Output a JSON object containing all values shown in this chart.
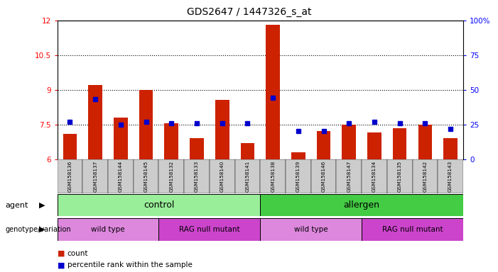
{
  "title": "GDS2647 / 1447326_s_at",
  "samples": [
    "GSM158136",
    "GSM158137",
    "GSM158144",
    "GSM158145",
    "GSM158132",
    "GSM158133",
    "GSM158140",
    "GSM158141",
    "GSM158138",
    "GSM158139",
    "GSM158146",
    "GSM158147",
    "GSM158134",
    "GSM158135",
    "GSM158142",
    "GSM158143"
  ],
  "counts": [
    7.1,
    9.2,
    7.8,
    9.0,
    7.55,
    6.9,
    8.55,
    6.7,
    11.8,
    6.3,
    7.2,
    7.5,
    7.15,
    7.35,
    7.5,
    6.9
  ],
  "percentiles": [
    27,
    43,
    25,
    27,
    26,
    26,
    26,
    26,
    44,
    20,
    20,
    26,
    27,
    26,
    26,
    22
  ],
  "ylim_left": [
    6,
    12
  ],
  "ylim_right": [
    0,
    100
  ],
  "yticks_left": [
    6,
    7.5,
    9,
    10.5,
    12
  ],
  "yticks_right": [
    0,
    25,
    50,
    75,
    100
  ],
  "bar_color": "#cc2200",
  "dot_color": "#0000cc",
  "agent_control_label": "control",
  "agent_allergen_label": "allergen",
  "agent_control_color": "#99ee99",
  "agent_allergen_color": "#44cc44",
  "wt_color": "#dd88dd",
  "rag_color": "#cc44cc",
  "wt_label": "wild type",
  "rag_label": "RAG null mutant",
  "agent_label": "agent",
  "genotype_label": "genotype/variation",
  "legend_count": "count",
  "legend_pct": "percentile rank within the sample",
  "sample_bg_color": "#cccccc"
}
